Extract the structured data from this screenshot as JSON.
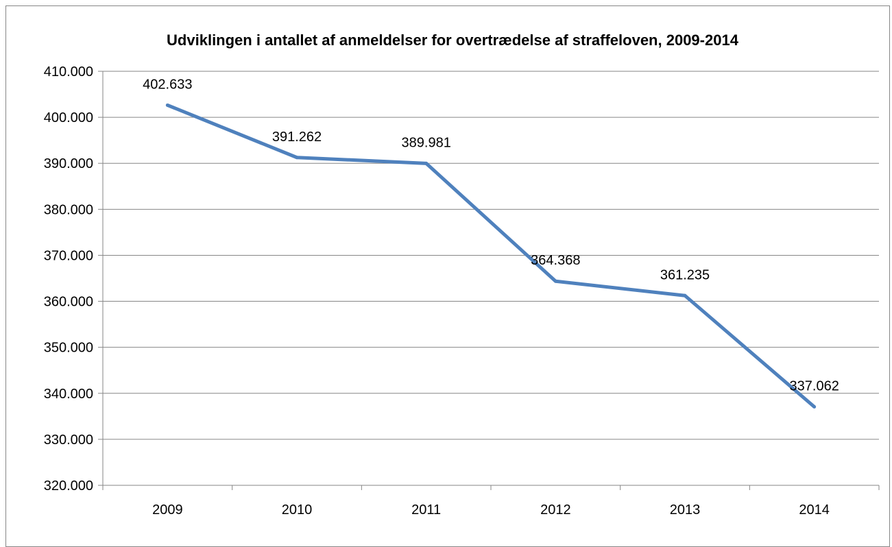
{
  "chart_data": {
    "type": "line",
    "title": "Udviklingen i antallet af anmeldelser for overtrædelse af straffeloven, 2009-2014",
    "xlabel": "",
    "ylabel": "",
    "categories": [
      "2009",
      "2010",
      "2011",
      "2012",
      "2013",
      "2014"
    ],
    "series": [
      {
        "values": [
          402633,
          391262,
          389981,
          364368,
          361235,
          337062
        ],
        "data_labels": [
          "402.633",
          "391.262",
          "389.981",
          "364.368",
          "361.235",
          "337.062"
        ],
        "color": "#4F81BD"
      }
    ],
    "ylim": [
      320000,
      410000
    ],
    "y_ticks": [
      320000,
      330000,
      340000,
      350000,
      360000,
      370000,
      380000,
      390000,
      400000,
      410000
    ],
    "y_tick_labels": [
      "320.000",
      "330.000",
      "340.000",
      "350.000",
      "360.000",
      "370.000",
      "380.000",
      "390.000",
      "400.000",
      "410.000"
    ],
    "grid": true,
    "legend": "none"
  }
}
